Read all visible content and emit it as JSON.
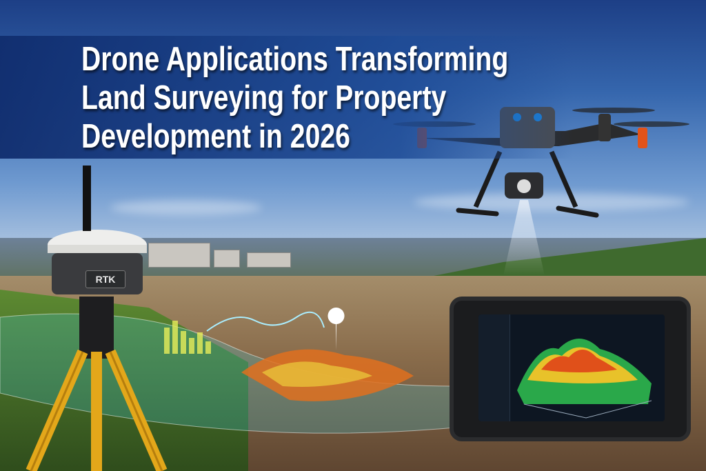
{
  "title": {
    "line1": "Drone Applications Transforming",
    "line2": "Land Surveying for Property",
    "line3": "Development in 2026"
  },
  "rtk_receiver": {
    "label": "RTK"
  },
  "colors": {
    "banner": "#1e4b96",
    "title_text": "#ffffff",
    "sky": "#3566ad"
  }
}
